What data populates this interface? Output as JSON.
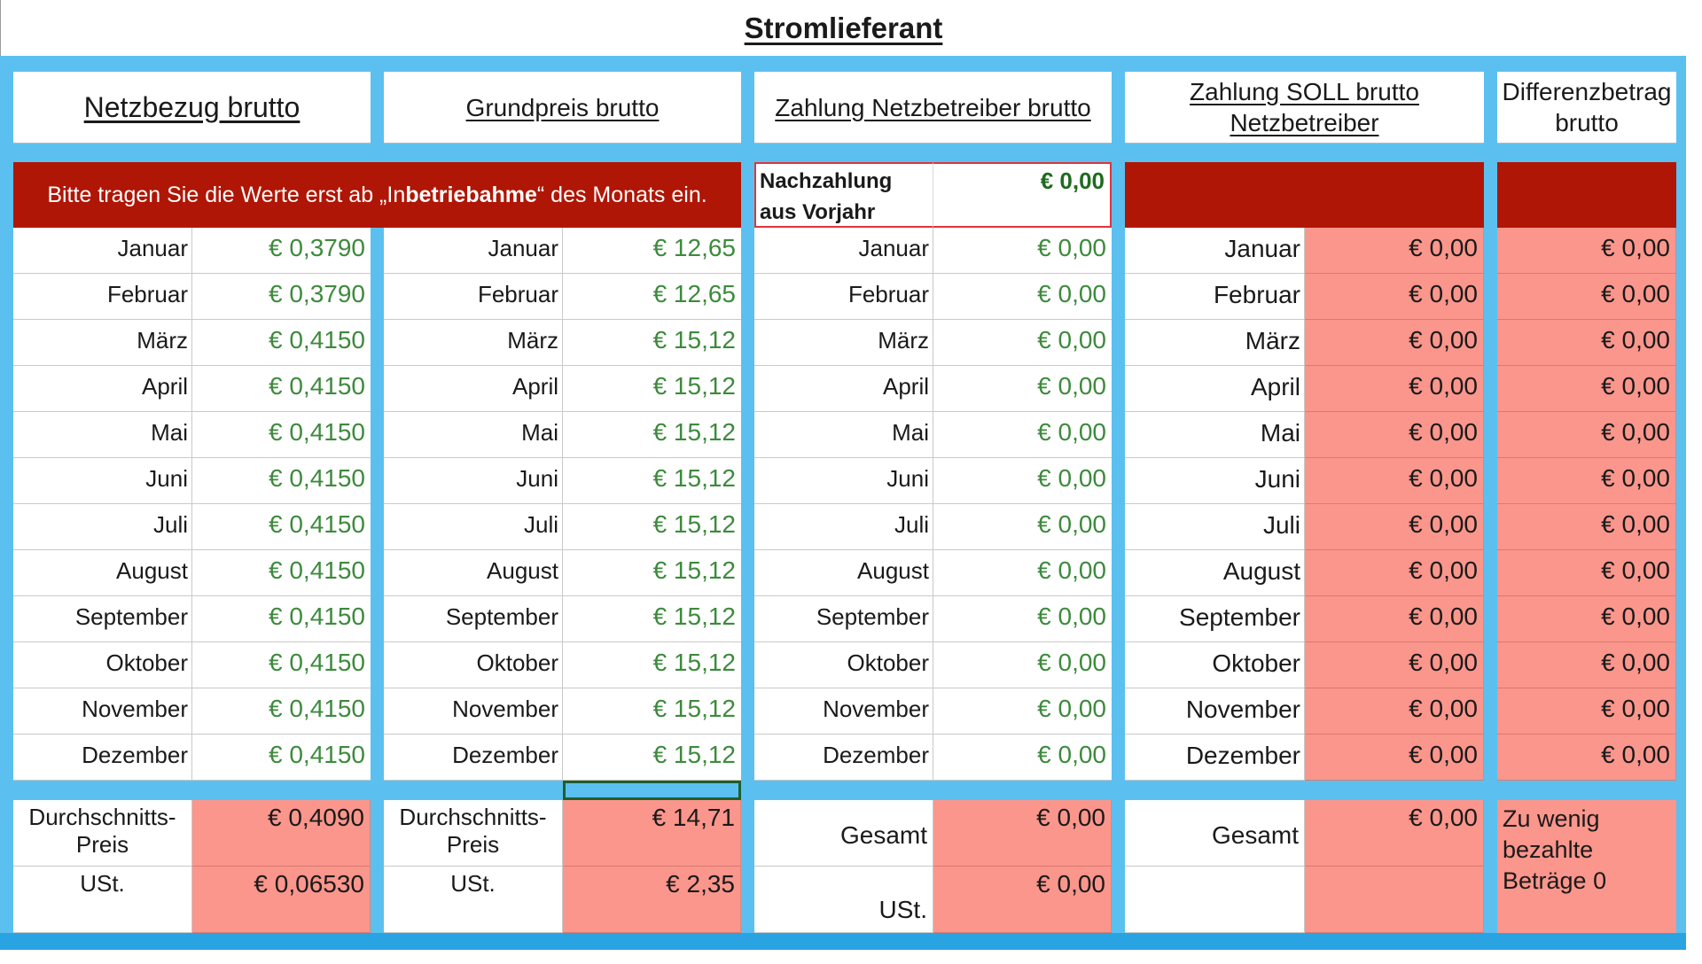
{
  "title": "Stromlieferant",
  "headers": {
    "netzbezug": "Netzbezug brutto",
    "grundpreis": "Grundpreis brutto",
    "zahlung_netz": "Zahlung Netzbetreiber brutto",
    "zahlung_soll_1": "Zahlung SOLL brutto",
    "zahlung_soll_2": "Netzbetreiber",
    "differenz_1": "Differenzbetrag",
    "differenz_2": "brutto"
  },
  "banner": {
    "part1": "Bitte tragen Sie die Werte erst ab „In",
    "bold": "betriebahme",
    "part2": "“ des Monats ein."
  },
  "nachzahlung": {
    "label_1": "Nachzahlung",
    "label_2": "aus Vorjahr",
    "value": "€ 0,00"
  },
  "months": [
    "Januar",
    "Februar",
    "März",
    "April",
    "Mai",
    "Juni",
    "Juli",
    "August",
    "September",
    "Oktober",
    "November",
    "Dezember"
  ],
  "netzbezug_values": [
    "€ 0,3790",
    "€ 0,3790",
    "€ 0,4150",
    "€ 0,4150",
    "€ 0,4150",
    "€ 0,4150",
    "€ 0,4150",
    "€ 0,4150",
    "€ 0,4150",
    "€ 0,4150",
    "€ 0,4150",
    "€ 0,4150"
  ],
  "grundpreis_values": [
    "€ 12,65",
    "€ 12,65",
    "€ 15,12",
    "€ 15,12",
    "€ 15,12",
    "€ 15,12",
    "€ 15,12",
    "€ 15,12",
    "€ 15,12",
    "€ 15,12",
    "€ 15,12",
    "€ 15,12"
  ],
  "zahlung_netz_values": [
    "€ 0,00",
    "€ 0,00",
    "€ 0,00",
    "€ 0,00",
    "€ 0,00",
    "€ 0,00",
    "€ 0,00",
    "€ 0,00",
    "€ 0,00",
    "€ 0,00",
    "€ 0,00",
    "€ 0,00"
  ],
  "zahlung_soll_values": [
    "€ 0,00",
    "€ 0,00",
    "€ 0,00",
    "€ 0,00",
    "€ 0,00",
    "€ 0,00",
    "€ 0,00",
    "€ 0,00",
    "€ 0,00",
    "€ 0,00",
    "€ 0,00",
    "€ 0,00"
  ],
  "differenz_values": [
    "€ 0,00",
    "€ 0,00",
    "€ 0,00",
    "€ 0,00",
    "€ 0,00",
    "€ 0,00",
    "€ 0,00",
    "€ 0,00",
    "€ 0,00",
    "€ 0,00",
    "€ 0,00",
    "€ 0,00"
  ],
  "summary": {
    "netzbezug": {
      "avg_label_1": "Durchschnitts-",
      "avg_label_2": "Preis",
      "avg_value": "€ 0,4090",
      "ust_label": "USt.",
      "ust_value": "€ 0,06530"
    },
    "grundpreis": {
      "avg_label_1": "Durchschnitts-",
      "avg_label_2": "Preis",
      "avg_value": "€ 14,71",
      "ust_label": "USt.",
      "ust_value": "€ 2,35"
    },
    "zahlung_netz": {
      "gesamt_label": "Gesamt",
      "gesamt_value": "€ 0,00",
      "ust_label": "USt.",
      "ust_value": "€ 0,00"
    },
    "zahlung_soll": {
      "gesamt_label": "Gesamt",
      "gesamt_value": "€ 0,00"
    },
    "differenz_note_1": "Zu wenig",
    "differenz_note_2": "bezahlte",
    "differenz_note_3": "Beträge 0"
  }
}
